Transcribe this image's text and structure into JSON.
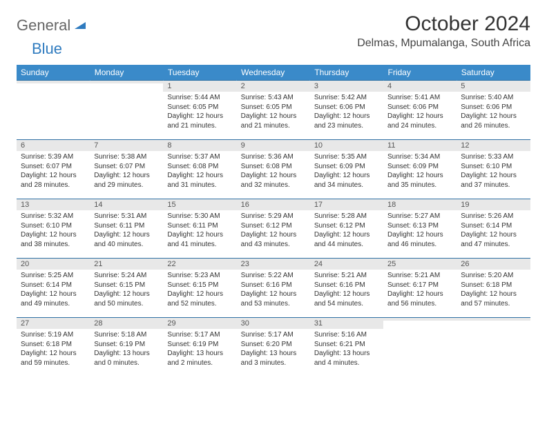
{
  "logo": {
    "part1": "General",
    "part2": "Blue"
  },
  "title": "October 2024",
  "location": "Delmas, Mpumalanga, South Africa",
  "colors": {
    "header_bg": "#3a8ac9",
    "header_text": "#ffffff",
    "daynum_bg": "#e8e8e8",
    "border": "#2d6fa3",
    "text": "#333333",
    "logo_gray": "#666666",
    "logo_blue": "#2f7bbf"
  },
  "dow": [
    "Sunday",
    "Monday",
    "Tuesday",
    "Wednesday",
    "Thursday",
    "Friday",
    "Saturday"
  ],
  "weeks": [
    [
      {
        "n": "",
        "lines": [
          "",
          "",
          "",
          ""
        ]
      },
      {
        "n": "",
        "lines": [
          "",
          "",
          "",
          ""
        ]
      },
      {
        "n": "1",
        "lines": [
          "Sunrise: 5:44 AM",
          "Sunset: 6:05 PM",
          "Daylight: 12 hours",
          "and 21 minutes."
        ]
      },
      {
        "n": "2",
        "lines": [
          "Sunrise: 5:43 AM",
          "Sunset: 6:05 PM",
          "Daylight: 12 hours",
          "and 21 minutes."
        ]
      },
      {
        "n": "3",
        "lines": [
          "Sunrise: 5:42 AM",
          "Sunset: 6:06 PM",
          "Daylight: 12 hours",
          "and 23 minutes."
        ]
      },
      {
        "n": "4",
        "lines": [
          "Sunrise: 5:41 AM",
          "Sunset: 6:06 PM",
          "Daylight: 12 hours",
          "and 24 minutes."
        ]
      },
      {
        "n": "5",
        "lines": [
          "Sunrise: 5:40 AM",
          "Sunset: 6:06 PM",
          "Daylight: 12 hours",
          "and 26 minutes."
        ]
      }
    ],
    [
      {
        "n": "6",
        "lines": [
          "Sunrise: 5:39 AM",
          "Sunset: 6:07 PM",
          "Daylight: 12 hours",
          "and 28 minutes."
        ]
      },
      {
        "n": "7",
        "lines": [
          "Sunrise: 5:38 AM",
          "Sunset: 6:07 PM",
          "Daylight: 12 hours",
          "and 29 minutes."
        ]
      },
      {
        "n": "8",
        "lines": [
          "Sunrise: 5:37 AM",
          "Sunset: 6:08 PM",
          "Daylight: 12 hours",
          "and 31 minutes."
        ]
      },
      {
        "n": "9",
        "lines": [
          "Sunrise: 5:36 AM",
          "Sunset: 6:08 PM",
          "Daylight: 12 hours",
          "and 32 minutes."
        ]
      },
      {
        "n": "10",
        "lines": [
          "Sunrise: 5:35 AM",
          "Sunset: 6:09 PM",
          "Daylight: 12 hours",
          "and 34 minutes."
        ]
      },
      {
        "n": "11",
        "lines": [
          "Sunrise: 5:34 AM",
          "Sunset: 6:09 PM",
          "Daylight: 12 hours",
          "and 35 minutes."
        ]
      },
      {
        "n": "12",
        "lines": [
          "Sunrise: 5:33 AM",
          "Sunset: 6:10 PM",
          "Daylight: 12 hours",
          "and 37 minutes."
        ]
      }
    ],
    [
      {
        "n": "13",
        "lines": [
          "Sunrise: 5:32 AM",
          "Sunset: 6:10 PM",
          "Daylight: 12 hours",
          "and 38 minutes."
        ]
      },
      {
        "n": "14",
        "lines": [
          "Sunrise: 5:31 AM",
          "Sunset: 6:11 PM",
          "Daylight: 12 hours",
          "and 40 minutes."
        ]
      },
      {
        "n": "15",
        "lines": [
          "Sunrise: 5:30 AM",
          "Sunset: 6:11 PM",
          "Daylight: 12 hours",
          "and 41 minutes."
        ]
      },
      {
        "n": "16",
        "lines": [
          "Sunrise: 5:29 AM",
          "Sunset: 6:12 PM",
          "Daylight: 12 hours",
          "and 43 minutes."
        ]
      },
      {
        "n": "17",
        "lines": [
          "Sunrise: 5:28 AM",
          "Sunset: 6:12 PM",
          "Daylight: 12 hours",
          "and 44 minutes."
        ]
      },
      {
        "n": "18",
        "lines": [
          "Sunrise: 5:27 AM",
          "Sunset: 6:13 PM",
          "Daylight: 12 hours",
          "and 46 minutes."
        ]
      },
      {
        "n": "19",
        "lines": [
          "Sunrise: 5:26 AM",
          "Sunset: 6:14 PM",
          "Daylight: 12 hours",
          "and 47 minutes."
        ]
      }
    ],
    [
      {
        "n": "20",
        "lines": [
          "Sunrise: 5:25 AM",
          "Sunset: 6:14 PM",
          "Daylight: 12 hours",
          "and 49 minutes."
        ]
      },
      {
        "n": "21",
        "lines": [
          "Sunrise: 5:24 AM",
          "Sunset: 6:15 PM",
          "Daylight: 12 hours",
          "and 50 minutes."
        ]
      },
      {
        "n": "22",
        "lines": [
          "Sunrise: 5:23 AM",
          "Sunset: 6:15 PM",
          "Daylight: 12 hours",
          "and 52 minutes."
        ]
      },
      {
        "n": "23",
        "lines": [
          "Sunrise: 5:22 AM",
          "Sunset: 6:16 PM",
          "Daylight: 12 hours",
          "and 53 minutes."
        ]
      },
      {
        "n": "24",
        "lines": [
          "Sunrise: 5:21 AM",
          "Sunset: 6:16 PM",
          "Daylight: 12 hours",
          "and 54 minutes."
        ]
      },
      {
        "n": "25",
        "lines": [
          "Sunrise: 5:21 AM",
          "Sunset: 6:17 PM",
          "Daylight: 12 hours",
          "and 56 minutes."
        ]
      },
      {
        "n": "26",
        "lines": [
          "Sunrise: 5:20 AM",
          "Sunset: 6:18 PM",
          "Daylight: 12 hours",
          "and 57 minutes."
        ]
      }
    ],
    [
      {
        "n": "27",
        "lines": [
          "Sunrise: 5:19 AM",
          "Sunset: 6:18 PM",
          "Daylight: 12 hours",
          "and 59 minutes."
        ]
      },
      {
        "n": "28",
        "lines": [
          "Sunrise: 5:18 AM",
          "Sunset: 6:19 PM",
          "Daylight: 13 hours",
          "and 0 minutes."
        ]
      },
      {
        "n": "29",
        "lines": [
          "Sunrise: 5:17 AM",
          "Sunset: 6:19 PM",
          "Daylight: 13 hours",
          "and 2 minutes."
        ]
      },
      {
        "n": "30",
        "lines": [
          "Sunrise: 5:17 AM",
          "Sunset: 6:20 PM",
          "Daylight: 13 hours",
          "and 3 minutes."
        ]
      },
      {
        "n": "31",
        "lines": [
          "Sunrise: 5:16 AM",
          "Sunset: 6:21 PM",
          "Daylight: 13 hours",
          "and 4 minutes."
        ]
      },
      {
        "n": "",
        "lines": [
          "",
          "",
          "",
          ""
        ]
      },
      {
        "n": "",
        "lines": [
          "",
          "",
          "",
          ""
        ]
      }
    ]
  ]
}
